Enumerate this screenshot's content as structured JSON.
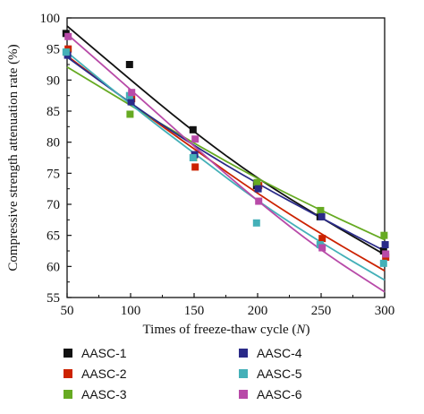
{
  "chart_data": {
    "type": "scatter",
    "xlabel": "Times of freeze-thaw cycle (",
    "xlabel_var": "N",
    "xlabel_close": ")",
    "ylabel": "Compressive strength attenuation rate (%)",
    "xlim": [
      50,
      300
    ],
    "ylim": [
      55,
      100
    ],
    "x_ticks": [
      50,
      100,
      150,
      200,
      250,
      300
    ],
    "y_ticks": [
      55,
      60,
      65,
      70,
      75,
      80,
      85,
      90,
      95,
      100
    ],
    "grid": false,
    "legend_position": "bottom, two columns",
    "x": [
      50,
      100,
      150,
      200,
      250,
      300
    ],
    "series": [
      {
        "name": "AASC-1",
        "color": "#111111",
        "values": [
          97.5,
          92.5,
          82.0,
          73.0,
          68.0,
          62.5
        ],
        "fit": [
          98.7,
          90.0,
          81.6,
          74.1,
          67.8,
          61.9
        ]
      },
      {
        "name": "AASC-2",
        "color": "#cc2200",
        "values": [
          95.0,
          87.0,
          76.0,
          73.0,
          64.5,
          61.5
        ],
        "fit": [
          93.9,
          86.2,
          78.9,
          71.7,
          65.2,
          59.3
        ]
      },
      {
        "name": "AASC-3",
        "color": "#66aa22",
        "values": [
          94.5,
          84.5,
          77.5,
          73.5,
          69.0,
          65.0
        ],
        "fit": [
          92.1,
          85.9,
          79.8,
          74.1,
          69.0,
          64.3
        ]
      },
      {
        "name": "AASC-4",
        "color": "#2a2a88",
        "values": [
          94.0,
          86.5,
          78.0,
          72.5,
          68.0,
          63.5
        ],
        "fit": [
          93.7,
          86.2,
          79.4,
          73.3,
          67.8,
          62.5
        ]
      },
      {
        "name": "AASC-5",
        "color": "#44b0b8",
        "values": [
          94.5,
          87.5,
          77.5,
          67.0,
          63.5,
          60.5
        ],
        "fit": [
          94.5,
          86.0,
          78.2,
          70.5,
          63.8,
          57.8
        ]
      },
      {
        "name": "AASC-6",
        "color": "#b84aa8",
        "values": [
          97.0,
          88.0,
          80.5,
          70.5,
          63.0,
          62.0
        ],
        "fit": [
          97.4,
          88.5,
          79.3,
          70.5,
          62.5,
          55.9
        ]
      }
    ]
  }
}
